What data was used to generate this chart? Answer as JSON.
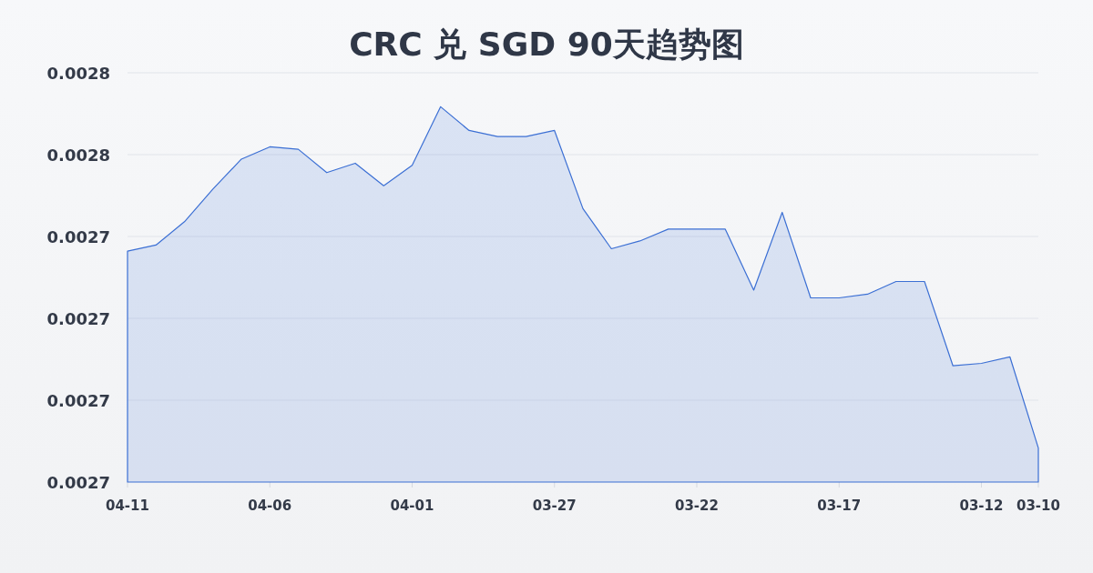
{
  "chart_data": {
    "type": "area",
    "title": "CRC 兑 SGD 90天趋势图",
    "categories": [
      "04-11",
      null,
      null,
      null,
      null,
      "04-06",
      null,
      null,
      null,
      null,
      "04-01",
      null,
      null,
      null,
      null,
      "03-27",
      null,
      null,
      null,
      null,
      "03-22",
      null,
      null,
      null,
      null,
      "03-17",
      null,
      null,
      null,
      null,
      "03-12",
      null,
      "03-10"
    ],
    "series": [
      {
        "color": "#3b6fd4",
        "values": [
          0.0027364,
          0.0027379,
          0.0027436,
          0.0027516,
          0.0027589,
          0.0027619,
          0.0027613,
          0.0027556,
          0.0027579,
          0.0027524,
          0.0027574,
          0.0027717,
          0.0027659,
          0.0027644,
          0.0027644,
          0.0027659,
          0.0027468,
          0.002737,
          0.0027389,
          0.0027418,
          0.0027418,
          0.0027418,
          0.0027269,
          0.0027459,
          0.002725,
          0.002725,
          0.0027259,
          0.002729,
          0.002729,
          0.0027084,
          0.002709,
          0.0027106,
          0.0026883
        ]
      }
    ],
    "ylim": [
      0.00268,
      0.00278
    ],
    "yticks": [
      {
        "value": 0.00268,
        "label": "0.0027"
      },
      {
        "value": 0.0027,
        "label": "0.0027"
      },
      {
        "value": 0.00272,
        "label": "0.0027"
      },
      {
        "value": 0.00274,
        "label": "0.0027"
      },
      {
        "value": 0.00276,
        "label": "0.0028"
      },
      {
        "value": 0.00278,
        "label": "0.0028"
      }
    ],
    "grid": "y"
  }
}
